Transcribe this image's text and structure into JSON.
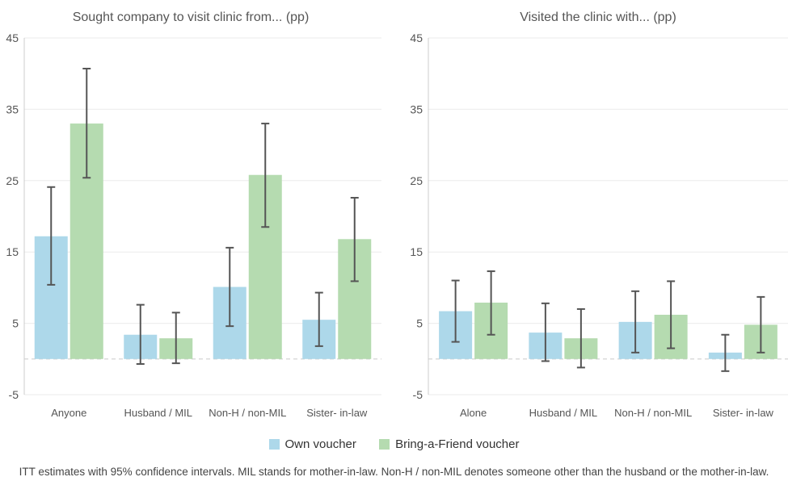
{
  "chart_data": [
    {
      "type": "bar",
      "title": "Sought company to visit clinic from... (pp)",
      "categories": [
        "Anyone",
        "Husband / MIL",
        "Non-H / non-MIL",
        "Sister- in-law"
      ],
      "ylim": [
        -5,
        45
      ],
      "yticks": [
        45,
        35,
        25,
        15,
        5,
        -5
      ],
      "grid": true,
      "series": [
        {
          "name": "Own voucher",
          "values": [
            17.2,
            3.4,
            10.1,
            5.5
          ],
          "ci_low": [
            10.4,
            -0.7,
            4.6,
            1.8
          ],
          "ci_high": [
            24.1,
            7.6,
            15.6,
            9.3
          ]
        },
        {
          "name": "Bring-a-Friend voucher",
          "values": [
            33.0,
            2.9,
            25.8,
            16.8
          ],
          "ci_low": [
            25.4,
            -0.6,
            18.5,
            10.9
          ],
          "ci_high": [
            40.7,
            6.5,
            33.0,
            22.6
          ]
        }
      ]
    },
    {
      "type": "bar",
      "title": "Visited the clinic with... (pp)",
      "categories": [
        "Alone",
        "Husband / MIL",
        "Non-H / non-MIL",
        "Sister- in-law"
      ],
      "ylim": [
        -5,
        45
      ],
      "yticks": [
        45,
        35,
        25,
        15,
        5,
        -5
      ],
      "grid": true,
      "series": [
        {
          "name": "Own voucher",
          "values": [
            6.7,
            3.7,
            5.2,
            0.9
          ],
          "ci_low": [
            2.4,
            -0.3,
            0.9,
            -1.7
          ],
          "ci_high": [
            11.0,
            7.8,
            9.5,
            3.4
          ]
        },
        {
          "name": "Bring-a-Friend voucher",
          "values": [
            7.9,
            2.9,
            6.2,
            4.8
          ],
          "ci_low": [
            3.4,
            -1.2,
            1.5,
            0.9
          ],
          "ci_high": [
            12.3,
            7.0,
            10.9,
            8.7
          ]
        }
      ]
    }
  ],
  "legend": {
    "position": "bottom",
    "items": [
      {
        "label": "Own voucher",
        "color": "#add8ea"
      },
      {
        "label": "Bring-a-Friend voucher",
        "color": "#b5dbb0"
      }
    ]
  },
  "footnote": "ITT estimates with 95% confidence intervals. MIL stands for mother-in-law. Non-H / non-MIL denotes someone other than the husband or the mother-in-law."
}
